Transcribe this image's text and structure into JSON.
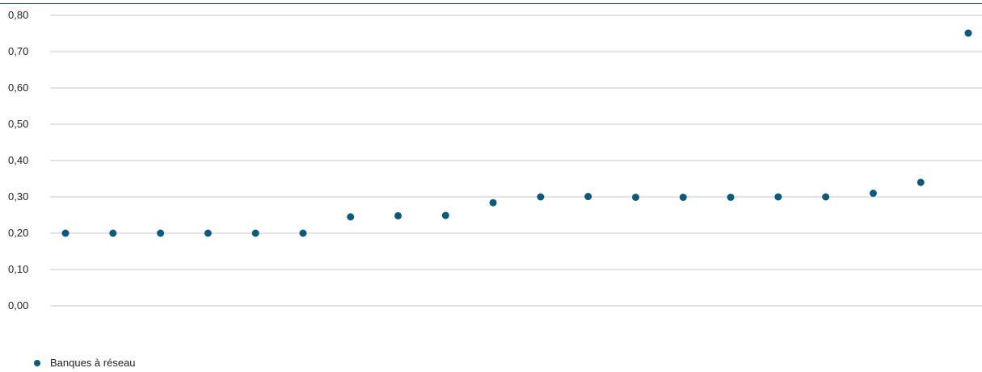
{
  "chart_data": {
    "type": "scatter",
    "title": "",
    "xlabel": "",
    "ylabel": "",
    "ylim": [
      0,
      0.8
    ],
    "yticks": [
      "0,00",
      "0,10",
      "0,20",
      "0,30",
      "0,40",
      "0,50",
      "0,60",
      "0,70",
      "0,80"
    ],
    "grid": true,
    "legend_position": "bottom-left",
    "series": [
      {
        "name": "Banques à réseau",
        "color": "#0d5a78",
        "values": [
          0.2,
          0.2,
          0.2,
          0.2,
          0.2,
          0.2,
          0.245,
          0.248,
          0.249,
          0.284,
          0.3,
          0.301,
          0.299,
          0.299,
          0.299,
          0.3,
          0.3,
          0.31,
          0.34,
          0.751
        ]
      }
    ]
  }
}
